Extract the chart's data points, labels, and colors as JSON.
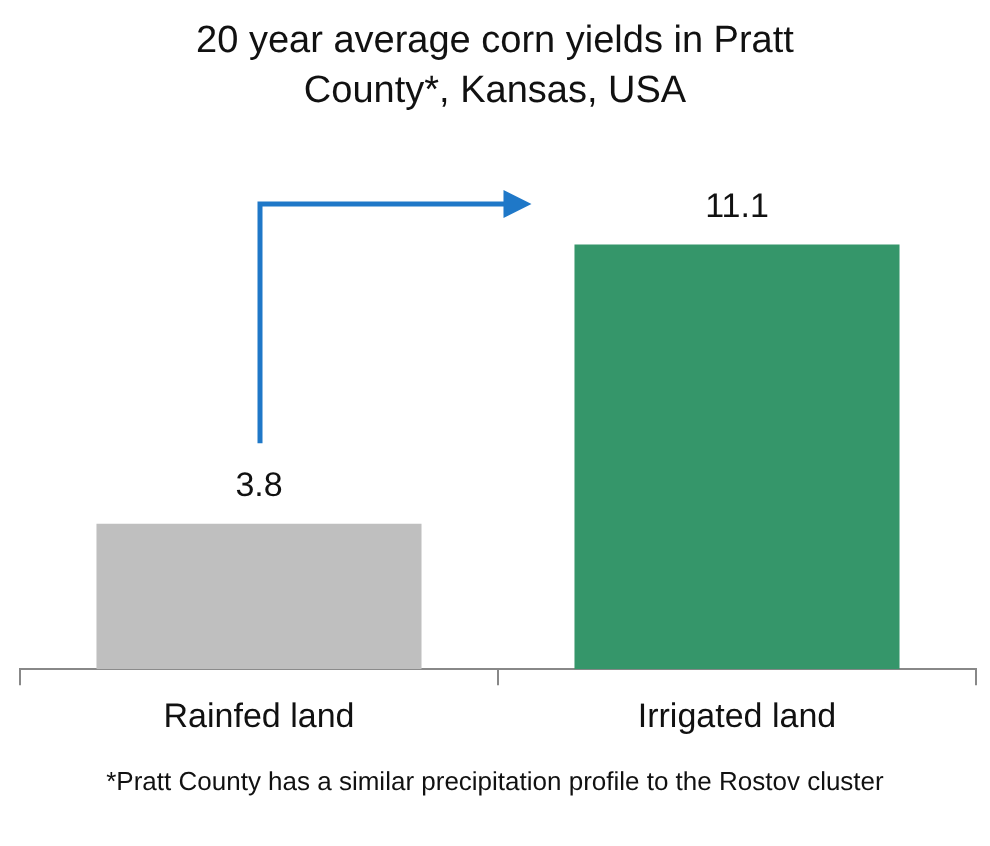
{
  "chart_data": {
    "type": "bar",
    "title": "20 year average corn yields in Pratt County*, Kansas, USA",
    "categories": [
      "Rainfed land",
      "Irrigated land"
    ],
    "values": [
      3.8,
      11.1
    ],
    "colors": [
      "#bfbfbf",
      "#35966a"
    ],
    "data_labels": true,
    "annotations": [
      "*Pratt County has a similar precipitation profile to the Rostov cluster"
    ]
  }
}
